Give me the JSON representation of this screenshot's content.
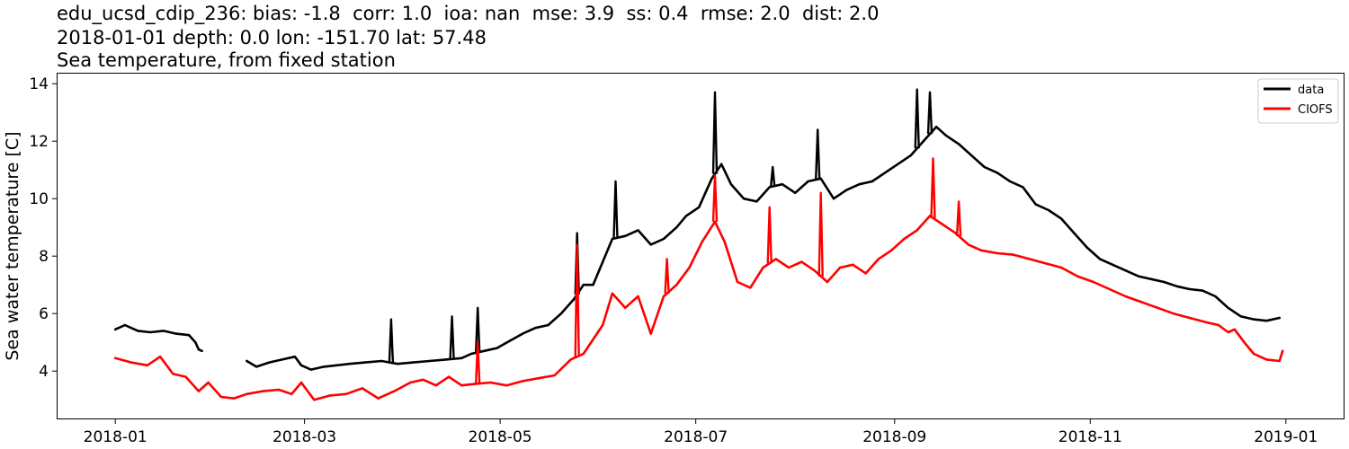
{
  "chart_data": {
    "type": "line",
    "title_lines": [
      "edu_ucsd_cdip_236: bias: -1.8  corr: 1.0  ioa: nan  mse: 3.9  ss: 0.4  rmse: 2.0  dist: 2.0",
      "2018-01-01 depth: 0.0 lon: -151.70 lat: 57.48",
      "Sea temperature, from fixed station"
    ],
    "xlabel": "",
    "ylabel": "Sea water temperature [C]",
    "x_range": [
      "2017-12-14",
      "2019-01-19"
    ],
    "ylim": [
      2.35,
      14.35
    ],
    "x_ticks": [
      "2018-01",
      "2018-03",
      "2018-05",
      "2018-07",
      "2018-09",
      "2018-11",
      "2019-01"
    ],
    "y_ticks": [
      4,
      6,
      8,
      10,
      12,
      14
    ],
    "grid": false,
    "legend_position": "top-right",
    "series": [
      {
        "name": "data",
        "color": "#000000",
        "points": [
          [
            "2018-01-01",
            5.45
          ],
          [
            "2018-01-04",
            5.6
          ],
          [
            "2018-01-08",
            5.4
          ],
          [
            "2018-01-12",
            5.35
          ],
          [
            "2018-01-16",
            5.4
          ],
          [
            "2018-01-20",
            5.3
          ],
          [
            "2018-01-24",
            5.25
          ],
          [
            "2018-01-26",
            5.0
          ],
          [
            "2018-01-27",
            4.75
          ],
          [
            "2018-01-28",
            4.7
          ],
          null,
          [
            "2018-02-11",
            4.35
          ],
          [
            "2018-02-14",
            4.15
          ],
          [
            "2018-02-18",
            4.3
          ],
          [
            "2018-02-22",
            4.4
          ],
          [
            "2018-02-26",
            4.5
          ],
          [
            "2018-02-28",
            4.2
          ],
          [
            "2018-03-03",
            4.05
          ],
          [
            "2018-03-07",
            4.15
          ],
          [
            "2018-03-11",
            4.2
          ],
          [
            "2018-03-15",
            4.25
          ],
          [
            "2018-03-20",
            4.3
          ],
          [
            "2018-03-25",
            4.35
          ],
          [
            "2018-03-30",
            4.25
          ],
          [
            "2018-04-04",
            4.3
          ],
          [
            "2018-04-09",
            4.35
          ],
          [
            "2018-04-14",
            4.4
          ],
          [
            "2018-04-19",
            4.45
          ],
          [
            "2018-04-22",
            4.6
          ],
          [
            "2018-04-26",
            4.7
          ],
          [
            "2018-04-30",
            4.8
          ],
          [
            "2018-05-04",
            5.05
          ],
          [
            "2018-05-08",
            5.3
          ],
          [
            "2018-05-12",
            5.5
          ],
          [
            "2018-05-16",
            5.6
          ],
          [
            "2018-05-20",
            6.0
          ],
          [
            "2018-05-24",
            6.5
          ],
          [
            "2018-05-27",
            7.0
          ],
          [
            "2018-05-30",
            7.0
          ],
          [
            "2018-06-02",
            7.8
          ],
          [
            "2018-06-05",
            8.6
          ],
          [
            "2018-06-09",
            8.7
          ],
          [
            "2018-06-13",
            8.9
          ],
          [
            "2018-06-17",
            8.4
          ],
          [
            "2018-06-21",
            8.6
          ],
          [
            "2018-06-25",
            9.0
          ],
          [
            "2018-06-28",
            9.4
          ],
          [
            "2018-07-02",
            9.7
          ],
          [
            "2018-07-06",
            10.7
          ],
          [
            "2018-07-09",
            11.2
          ],
          [
            "2018-07-12",
            10.5
          ],
          [
            "2018-07-16",
            10.0
          ],
          [
            "2018-07-20",
            9.9
          ],
          [
            "2018-07-24",
            10.4
          ],
          [
            "2018-07-28",
            10.5
          ],
          [
            "2018-08-01",
            10.2
          ],
          [
            "2018-08-05",
            10.6
          ],
          [
            "2018-08-09",
            10.7
          ],
          [
            "2018-08-13",
            10.0
          ],
          [
            "2018-08-17",
            10.3
          ],
          [
            "2018-08-21",
            10.5
          ],
          [
            "2018-08-25",
            10.6
          ],
          [
            "2018-08-29",
            10.9
          ],
          [
            "2018-09-02",
            11.2
          ],
          [
            "2018-09-06",
            11.5
          ],
          [
            "2018-09-10",
            12.0
          ],
          [
            "2018-09-14",
            12.5
          ],
          [
            "2018-09-17",
            12.2
          ],
          [
            "2018-09-21",
            11.9
          ],
          [
            "2018-09-25",
            11.5
          ],
          [
            "2018-09-29",
            11.1
          ],
          [
            "2018-10-03",
            10.9
          ],
          [
            "2018-10-07",
            10.6
          ],
          [
            "2018-10-11",
            10.4
          ],
          [
            "2018-10-15",
            9.8
          ],
          [
            "2018-10-19",
            9.6
          ],
          [
            "2018-10-23",
            9.3
          ],
          [
            "2018-10-27",
            8.8
          ],
          [
            "2018-10-31",
            8.3
          ],
          [
            "2018-11-04",
            7.9
          ],
          [
            "2018-11-08",
            7.7
          ],
          [
            "2018-11-12",
            7.5
          ],
          [
            "2018-11-16",
            7.3
          ],
          [
            "2018-11-20",
            7.2
          ],
          [
            "2018-11-24",
            7.1
          ],
          [
            "2018-11-28",
            6.95
          ],
          [
            "2018-12-02",
            6.85
          ],
          [
            "2018-12-06",
            6.8
          ],
          [
            "2018-12-10",
            6.6
          ],
          [
            "2018-12-14",
            6.2
          ],
          [
            "2018-12-18",
            5.9
          ],
          [
            "2018-12-22",
            5.8
          ],
          [
            "2018-12-26",
            5.75
          ],
          [
            "2018-12-30",
            5.85
          ]
        ],
        "spikes": [
          [
            "2018-03-28",
            5.8
          ],
          [
            "2018-04-16",
            5.9
          ],
          [
            "2018-04-24",
            6.2
          ],
          [
            "2018-05-25",
            8.8
          ],
          [
            "2018-06-06",
            10.6
          ],
          [
            "2018-07-07",
            13.7
          ],
          [
            "2018-07-25",
            11.1
          ],
          [
            "2018-08-08",
            12.4
          ],
          [
            "2018-09-08",
            13.8
          ],
          [
            "2018-09-12",
            13.7
          ]
        ]
      },
      {
        "name": "CIOFS",
        "color": "#ff0000",
        "points": [
          [
            "2018-01-01",
            4.45
          ],
          [
            "2018-01-06",
            4.3
          ],
          [
            "2018-01-11",
            4.2
          ],
          [
            "2018-01-15",
            4.5
          ],
          [
            "2018-01-19",
            3.9
          ],
          [
            "2018-01-23",
            3.8
          ],
          [
            "2018-01-27",
            3.3
          ],
          [
            "2018-01-30",
            3.6
          ],
          [
            "2018-02-03",
            3.1
          ],
          [
            "2018-02-07",
            3.05
          ],
          [
            "2018-02-11",
            3.2
          ],
          [
            "2018-02-16",
            3.3
          ],
          [
            "2018-02-21",
            3.35
          ],
          [
            "2018-02-25",
            3.2
          ],
          [
            "2018-02-28",
            3.6
          ],
          [
            "2018-03-04",
            3.0
          ],
          [
            "2018-03-09",
            3.15
          ],
          [
            "2018-03-14",
            3.2
          ],
          [
            "2018-03-19",
            3.4
          ],
          [
            "2018-03-24",
            3.05
          ],
          [
            "2018-03-29",
            3.3
          ],
          [
            "2018-04-03",
            3.6
          ],
          [
            "2018-04-07",
            3.7
          ],
          [
            "2018-04-11",
            3.5
          ],
          [
            "2018-04-15",
            3.8
          ],
          [
            "2018-04-19",
            3.5
          ],
          [
            "2018-04-23",
            3.55
          ],
          [
            "2018-04-28",
            3.6
          ],
          [
            "2018-05-03",
            3.5
          ],
          [
            "2018-05-08",
            3.65
          ],
          [
            "2018-05-13",
            3.75
          ],
          [
            "2018-05-18",
            3.85
          ],
          [
            "2018-05-23",
            4.4
          ],
          [
            "2018-05-27",
            4.6
          ],
          [
            "2018-05-30",
            5.1
          ],
          [
            "2018-06-02",
            5.6
          ],
          [
            "2018-06-05",
            6.7
          ],
          [
            "2018-06-09",
            6.2
          ],
          [
            "2018-06-13",
            6.6
          ],
          [
            "2018-06-17",
            5.3
          ],
          [
            "2018-06-21",
            6.6
          ],
          [
            "2018-06-25",
            7.0
          ],
          [
            "2018-06-29",
            7.6
          ],
          [
            "2018-07-03",
            8.5
          ],
          [
            "2018-07-07",
            9.2
          ],
          [
            "2018-07-10",
            8.5
          ],
          [
            "2018-07-14",
            7.1
          ],
          [
            "2018-07-18",
            6.9
          ],
          [
            "2018-07-22",
            7.6
          ],
          [
            "2018-07-26",
            7.9
          ],
          [
            "2018-07-30",
            7.6
          ],
          [
            "2018-08-03",
            7.8
          ],
          [
            "2018-08-07",
            7.5
          ],
          [
            "2018-08-11",
            7.1
          ],
          [
            "2018-08-15",
            7.6
          ],
          [
            "2018-08-19",
            7.7
          ],
          [
            "2018-08-23",
            7.4
          ],
          [
            "2018-08-27",
            7.9
          ],
          [
            "2018-08-31",
            8.2
          ],
          [
            "2018-09-04",
            8.6
          ],
          [
            "2018-09-08",
            8.9
          ],
          [
            "2018-09-12",
            9.4
          ],
          [
            "2018-09-16",
            9.1
          ],
          [
            "2018-09-20",
            8.8
          ],
          [
            "2018-09-24",
            8.4
          ],
          [
            "2018-09-28",
            8.2
          ],
          [
            "2018-10-03",
            8.1
          ],
          [
            "2018-10-08",
            8.05
          ],
          [
            "2018-10-13",
            7.9
          ],
          [
            "2018-10-18",
            7.75
          ],
          [
            "2018-10-23",
            7.6
          ],
          [
            "2018-10-28",
            7.3
          ],
          [
            "2018-11-02",
            7.1
          ],
          [
            "2018-11-07",
            6.85
          ],
          [
            "2018-11-12",
            6.6
          ],
          [
            "2018-11-17",
            6.4
          ],
          [
            "2018-11-22",
            6.2
          ],
          [
            "2018-11-27",
            6.0
          ],
          [
            "2018-12-02",
            5.85
          ],
          [
            "2018-12-07",
            5.7
          ],
          [
            "2018-12-11",
            5.6
          ],
          [
            "2018-12-14",
            5.35
          ],
          [
            "2018-12-16",
            5.45
          ],
          [
            "2018-12-19",
            5.0
          ],
          [
            "2018-12-22",
            4.6
          ],
          [
            "2018-12-26",
            4.4
          ],
          [
            "2018-12-30",
            4.35
          ],
          [
            "2018-12-31",
            4.7
          ]
        ],
        "spikes": [
          [
            "2018-04-24",
            5.0
          ],
          [
            "2018-05-25",
            8.4
          ],
          [
            "2018-06-22",
            7.9
          ],
          [
            "2018-07-07",
            10.8
          ],
          [
            "2018-07-24",
            9.7
          ],
          [
            "2018-08-09",
            10.2
          ],
          [
            "2018-09-13",
            11.4
          ],
          [
            "2018-09-21",
            9.9
          ]
        ]
      }
    ]
  }
}
